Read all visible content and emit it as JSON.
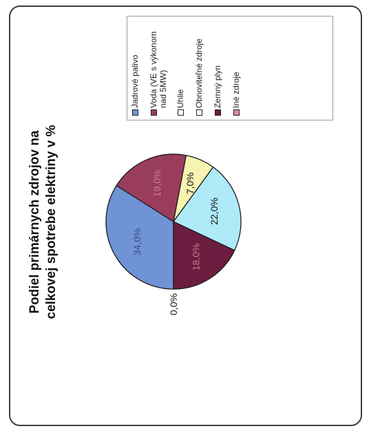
{
  "chart_data": {
    "type": "pie",
    "title": "Podiel primárnych zdrojov na celkovej spotrebe elektriny v %",
    "title_lines": [
      "Podiel primárnych zdrojov na",
      "celkovej spotrebe elektriny v %"
    ],
    "legend_position": "right",
    "orientation_note": "figure rotated 90° counter-clockwise",
    "slices": [
      {
        "name": "Jadrové palivo",
        "value": 34.0,
        "label": "34,0%",
        "color": "#6f93d4"
      },
      {
        "name": "Voda (VE s výkonom nad 5MW)",
        "value": 19.0,
        "label": "19,0%",
        "color": "#9a3d5c"
      },
      {
        "name": "Uhlie",
        "value": 7.0,
        "label": "7,0%",
        "color": "#f7f3b0"
      },
      {
        "name": "Obnoviteľné zdroje",
        "value": 22.0,
        "label": "22,0%",
        "color": "#aeeaf8"
      },
      {
        "name": "Zemný plyn",
        "value": 18.0,
        "label": "18,0%",
        "color": "#6b1d3f"
      },
      {
        "name": "Iné zdroje",
        "value": 0.0,
        "label": "0,0%",
        "color": "#d98a9c"
      }
    ]
  },
  "legend": {
    "items": [
      {
        "label": "Jadrové palivo",
        "color": "#6f93d4"
      },
      {
        "label": "Voda (VE s výkonom nad 5MW)",
        "color": "#9a3d5c"
      },
      {
        "label": "Uhlie",
        "color": "#ffffff"
      },
      {
        "label": "Obnoviteľné zdroje",
        "color": "#ffffff"
      },
      {
        "label": "Zemný plyn",
        "color": "#6b1d3f"
      },
      {
        "label": "Iné zdroje",
        "color": "#d98a9c"
      }
    ]
  }
}
